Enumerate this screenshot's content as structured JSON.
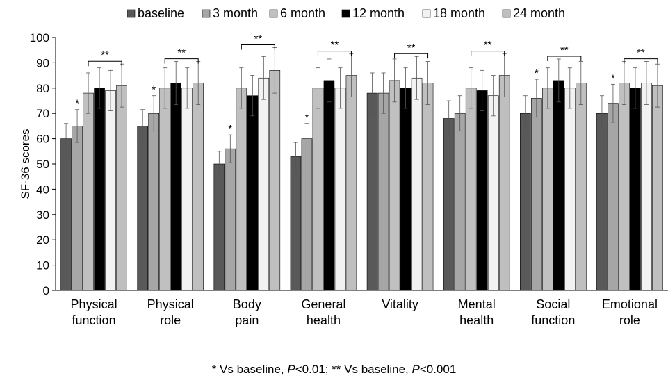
{
  "chart_data": {
    "type": "bar",
    "ylabel": "SF-36 scores",
    "ylim": [
      0,
      100
    ],
    "yticks": [
      "0",
      "10",
      "20",
      "30",
      "40",
      "50",
      "60",
      "70",
      "80",
      "90",
      "100"
    ],
    "legend_position": "top",
    "categories": [
      [
        "Physical",
        "function"
      ],
      [
        "Physical",
        "role"
      ],
      [
        "Body",
        "pain"
      ],
      [
        "General",
        "health"
      ],
      [
        "Vitality"
      ],
      [
        "Mental",
        "health"
      ],
      [
        "Social",
        "function"
      ],
      [
        "Emotional",
        "role"
      ]
    ],
    "series": [
      {
        "name": "baseline",
        "color": "#595959",
        "values": [
          60,
          65,
          50,
          53,
          78,
          68,
          70,
          70
        ],
        "errors": [
          6,
          6.5,
          5,
          5.5,
          8,
          7,
          7,
          7
        ]
      },
      {
        "name": "3 month",
        "color": "#a6a6a6",
        "values": [
          65,
          70,
          56,
          60,
          78,
          70,
          76,
          74
        ],
        "errors": [
          6.5,
          7,
          5.5,
          6,
          8,
          7,
          7.5,
          7.5
        ]
      },
      {
        "name": "6 month",
        "color": "#c0c0c0",
        "values": [
          78,
          80,
          80,
          80,
          83,
          80,
          80,
          82
        ],
        "errors": [
          8,
          8,
          8,
          8,
          8.5,
          8,
          8,
          8.5
        ]
      },
      {
        "name": "12 month",
        "color": "#000000",
        "values": [
          80,
          82,
          77,
          83,
          80,
          79,
          83,
          80
        ],
        "errors": [
          8,
          8.5,
          8,
          8.5,
          8,
          8,
          8.5,
          8
        ]
      },
      {
        "name": "18 month",
        "color": "#f2f2f2",
        "values": [
          79,
          80,
          84,
          80,
          84,
          77,
          80,
          82
        ],
        "errors": [
          8,
          8,
          8.5,
          8,
          8.5,
          8,
          8,
          8.5
        ]
      },
      {
        "name": "24 month",
        "color": "#bfbfbf",
        "values": [
          81,
          82,
          87,
          85,
          82,
          85,
          82,
          81
        ],
        "errors": [
          8.5,
          8.5,
          9,
          8.5,
          8.5,
          8.5,
          8.5,
          8.5
        ]
      }
    ],
    "significance": [
      {
        "category": 0,
        "single": "*",
        "bracket": "**"
      },
      {
        "category": 1,
        "single": "*",
        "bracket": "**"
      },
      {
        "category": 2,
        "single": "*",
        "bracket": "**"
      },
      {
        "category": 3,
        "single": "*",
        "bracket": "**"
      },
      {
        "category": 4,
        "single": null,
        "bracket": "**"
      },
      {
        "category": 5,
        "single": null,
        "bracket": "**"
      },
      {
        "category": 6,
        "single": "*",
        "bracket": "**"
      },
      {
        "category": 7,
        "single": "*",
        "bracket": "**"
      }
    ],
    "footnote": {
      "part1": "* Vs baseline, ",
      "p1": "P",
      "part2": "<0.01;  ** Vs baseline, ",
      "p2": "P",
      "part3": "<0.001"
    }
  }
}
